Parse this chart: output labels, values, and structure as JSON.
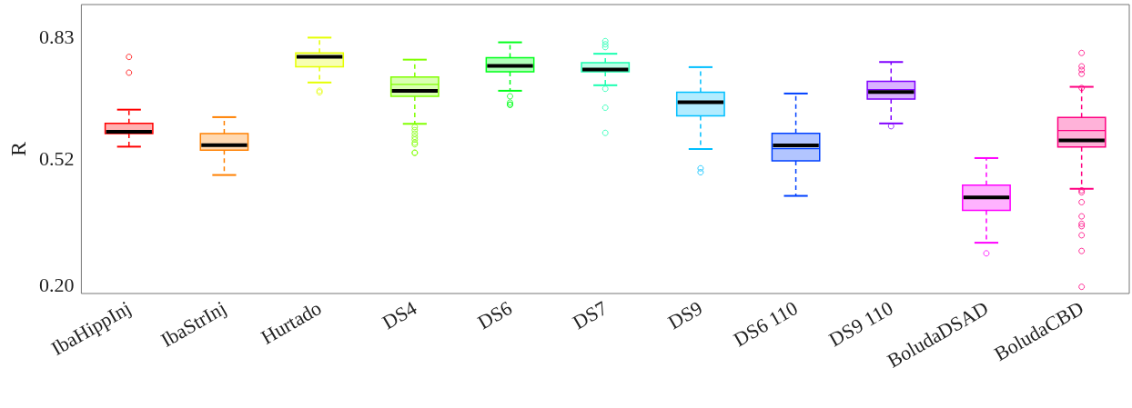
{
  "chart_data": {
    "type": "box",
    "ylabel": "R",
    "categories": [
      "IbaHippInj",
      "IbaStrInj",
      "Hurtado",
      "DS4",
      "DS6",
      "DS7",
      "DS9",
      "DS6 110",
      "DS9 110",
      "BoludaDSAD",
      "BoludaCBD"
    ],
    "colors": [
      "#ff0000",
      "#ff8000",
      "#e6ff00",
      "#80ff00",
      "#00ff1a",
      "#1affb0",
      "#00bfff",
      "#0040ff",
      "#8000ff",
      "#ff00ff",
      "#ff0080"
    ],
    "boxes": [
      {
        "low": 0.55,
        "q1": 0.583,
        "median": 0.588,
        "q3": 0.609,
        "high": 0.644,
        "outliers": [
          0.778,
          0.738
        ]
      },
      {
        "low": 0.478,
        "q1": 0.541,
        "median": 0.554,
        "q3": 0.583,
        "high": 0.625
      },
      {
        "low": 0.713,
        "q1": 0.753,
        "median": 0.778,
        "q3": 0.788,
        "high": 0.827,
        "outliers": [
          0.692,
          0.688
        ]
      },
      {
        "low": 0.608,
        "q1": 0.678,
        "median": 0.692,
        "q3": 0.727,
        "high": 0.771,
        "mean": 0.708,
        "outliers": [
          0.6,
          0.592,
          0.583,
          0.575,
          0.568,
          0.56,
          0.556,
          0.535,
          0.534
        ]
      },
      {
        "low": 0.692,
        "q1": 0.74,
        "median": 0.755,
        "q3": 0.776,
        "high": 0.815,
        "outliers": [
          0.678,
          0.662,
          0.657,
          0.656
        ]
      },
      {
        "low": 0.706,
        "q1": 0.74,
        "median": 0.746,
        "q3": 0.763,
        "high": 0.786,
        "outliers": [
          0.818,
          0.81,
          0.803,
          0.697,
          0.649,
          0.585
        ]
      },
      {
        "low": 0.544,
        "q1": 0.628,
        "median": 0.663,
        "q3": 0.688,
        "high": 0.752,
        "outliers": [
          0.495,
          0.485
        ]
      },
      {
        "low": 0.425,
        "q1": 0.514,
        "median": 0.553,
        "q3": 0.584,
        "high": 0.685,
        "mean": 0.545
      },
      {
        "low": 0.609,
        "q1": 0.671,
        "median": 0.689,
        "q3": 0.716,
        "high": 0.765,
        "mean": 0.695,
        "outliers": [
          0.602
        ]
      },
      {
        "low": 0.306,
        "q1": 0.388,
        "median": 0.421,
        "q3": 0.452,
        "high": 0.521,
        "outliers": [
          0.279
        ]
      },
      {
        "low": 0.443,
        "q1": 0.549,
        "median": 0.566,
        "q3": 0.624,
        "high": 0.702,
        "mean": 0.591,
        "outliers": [
          0.788,
          0.754,
          0.745,
          0.735,
          0.699,
          0.439,
          0.434,
          0.409,
          0.373,
          0.354,
          0.348,
          0.325,
          0.285,
          0.194
        ]
      }
    ],
    "ylim": [
      0.177,
      0.911
    ],
    "yticks": [
      {
        "value": 0.2,
        "label": "0.20"
      },
      0.52,
      0.83
    ],
    "grid": false
  }
}
